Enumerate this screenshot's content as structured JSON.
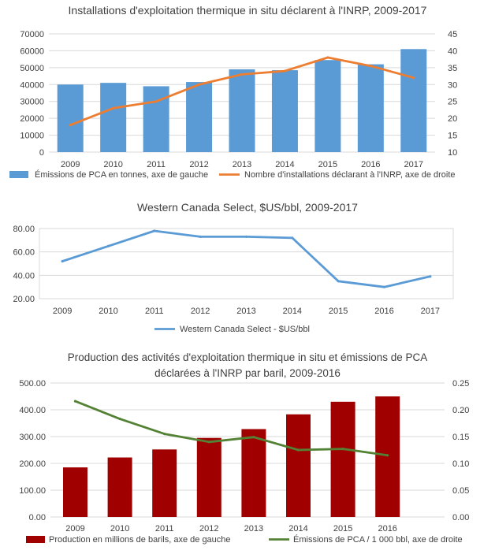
{
  "chart_data": [
    {
      "type": "bar",
      "title": "Installations d'exploitation thermique in situ déclarent à l'INRP, 2009-2017",
      "categories": [
        "2009",
        "2010",
        "2011",
        "2012",
        "2013",
        "2014",
        "2015",
        "2016",
        "2017"
      ],
      "y_left": {
        "ylim": [
          0,
          70000
        ],
        "ticks": [
          "0",
          "10000",
          "20000",
          "30000",
          "40000",
          "50000",
          "60000",
          "70000"
        ]
      },
      "y_right": {
        "ylim": [
          10,
          45
        ],
        "ticks": [
          "10",
          "15",
          "20",
          "25",
          "30",
          "35",
          "40",
          "45"
        ]
      },
      "series": [
        {
          "name": "Émissions de PCA en tonnes, axe de gauche",
          "kind": "bar",
          "axis": "left",
          "values": [
            40000,
            41000,
            39000,
            41500,
            49000,
            48500,
            54500,
            52000,
            61000
          ]
        },
        {
          "name": "Nombre d'installations déclarant à l'INRP, axe de droite",
          "kind": "line",
          "axis": "right",
          "values": [
            18,
            23,
            25,
            30,
            33,
            34,
            38,
            35.5,
            32
          ]
        }
      ],
      "colors": {
        "bar": "#5b9bd5",
        "line": "#ed7d31"
      },
      "legend_position": "bottom"
    },
    {
      "type": "line",
      "title": "Western Canada Select, $US/bbl, 2009-2017",
      "categories": [
        "2009",
        "2010",
        "2011",
        "2012",
        "2013",
        "2014",
        "2015",
        "2016",
        "2017"
      ],
      "y_left": {
        "ylim": [
          20,
          80
        ],
        "ticks": [
          "20.00",
          "40.00",
          "60.00",
          "80.00"
        ]
      },
      "series": [
        {
          "name": "Western Canada Select - $US/bbl",
          "kind": "line",
          "axis": "left",
          "values": [
            52,
            65,
            78,
            73,
            73,
            72,
            35,
            30,
            39
          ]
        }
      ],
      "colors": {
        "line": "#5b9bd5"
      },
      "legend_position": "bottom"
    },
    {
      "type": "bar",
      "title": [
        "Production des activités d'exploitation thermique in situ et émissions de PCA",
        "déclarées à l'INRP par baril, 2009-2016"
      ],
      "categories": [
        "2009",
        "2010",
        "2011",
        "2012",
        "2013",
        "2014",
        "2015",
        "2016"
      ],
      "y_left": {
        "ylim": [
          0,
          500
        ],
        "ticks": [
          "0.00",
          "100.00",
          "200.00",
          "300.00",
          "400.00",
          "500.00"
        ]
      },
      "y_right": {
        "ylim": [
          0,
          0.25
        ],
        "ticks": [
          "0.00",
          "0.05",
          "0.10",
          "0.15",
          "0.20",
          "0.25"
        ]
      },
      "series": [
        {
          "name": "Production en millions de barils, axe de gauche",
          "kind": "bar",
          "axis": "left",
          "values": [
            185,
            222,
            252,
            295,
            328,
            383,
            430,
            450
          ]
        },
        {
          "name": "Émissions de PCA / 1 000 bbl, axe de droite",
          "kind": "line",
          "axis": "right",
          "values": [
            0.216,
            0.183,
            0.155,
            0.14,
            0.149,
            0.125,
            0.127,
            0.115
          ]
        }
      ],
      "colors": {
        "bar": "#a00000",
        "line": "#548235"
      },
      "legend_position": "bottom"
    }
  ]
}
